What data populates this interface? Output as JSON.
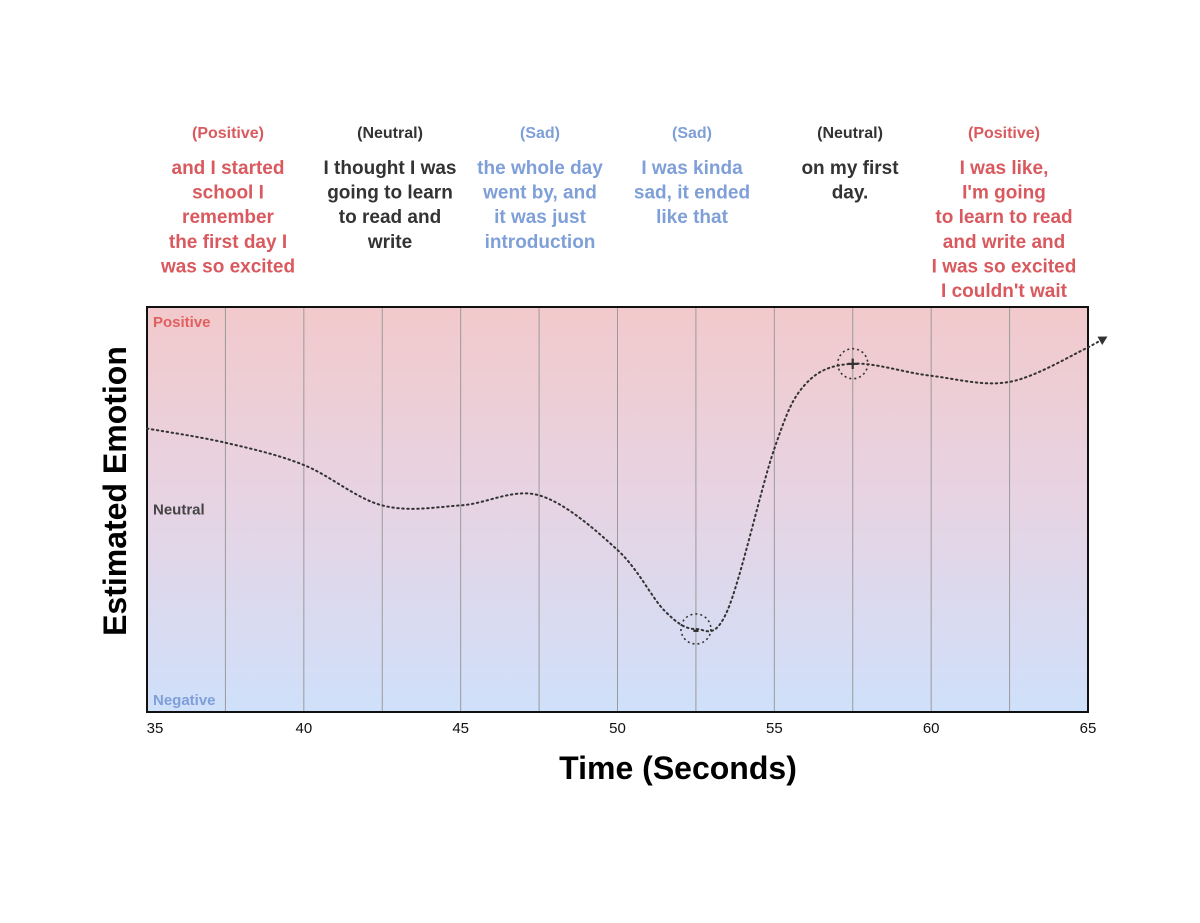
{
  "chart_data": {
    "type": "line",
    "xlabel": "Time (Seconds)",
    "ylabel": "Estimated Emotion",
    "xlim": [
      35,
      65
    ],
    "ylim": [
      -1,
      1
    ],
    "x_ticks": [
      "35",
      "40",
      "45",
      "50",
      "55",
      "60",
      "65"
    ],
    "y_levels": [
      {
        "label": "Positive",
        "value": 1,
        "color": "#e06060"
      },
      {
        "label": "Neutral",
        "value": 0,
        "color": "#444444"
      },
      {
        "label": "Negative",
        "value": -1,
        "color": "#7f9fd8"
      }
    ],
    "series": [
      {
        "style": "dotted",
        "x": [
          35,
          37.5,
          40,
          42.5,
          45,
          47.5,
          50,
          51.5,
          52.5,
          53.5,
          55,
          56,
          57.5,
          60,
          62.5,
          65
        ],
        "y": [
          0.4,
          0.33,
          0.22,
          0.02,
          0.02,
          0.07,
          -0.2,
          -0.5,
          -0.59,
          -0.5,
          0.3,
          0.62,
          0.72,
          0.66,
          0.63,
          0.8
        ]
      }
    ],
    "markers": [
      {
        "symbol": "-",
        "x": 52.5,
        "y": -0.59
      },
      {
        "symbol": "+",
        "x": 57.5,
        "y": 0.72
      }
    ],
    "segments": [
      {
        "tag": "(Positive)",
        "color": "#d9595e",
        "lines": [
          "and I started",
          "school I",
          "remember",
          "the first day I",
          "was so excited"
        ]
      },
      {
        "tag": "(Neutral)",
        "color": "#333333",
        "lines": [
          "I thought I was",
          "going to learn",
          "to read and",
          "write"
        ]
      },
      {
        "tag": "(Sad)",
        "color": "#7f9fd8",
        "lines": [
          "the whole day",
          "went by, and",
          "it was just",
          "introduction"
        ]
      },
      {
        "tag": "(Sad)",
        "color": "#7f9fd8",
        "lines": [
          "I was kinda",
          "sad, it ended",
          "like that"
        ]
      },
      {
        "tag": "(Neutral)",
        "color": "#333333",
        "lines": [
          "on my first",
          "day."
        ]
      },
      {
        "tag": "(Positive)",
        "color": "#d9595e",
        "lines": [
          "I was like,",
          "I'm going",
          "to learn to read",
          "and write and",
          "I was so excited",
          "I couldn't wait"
        ]
      }
    ]
  }
}
